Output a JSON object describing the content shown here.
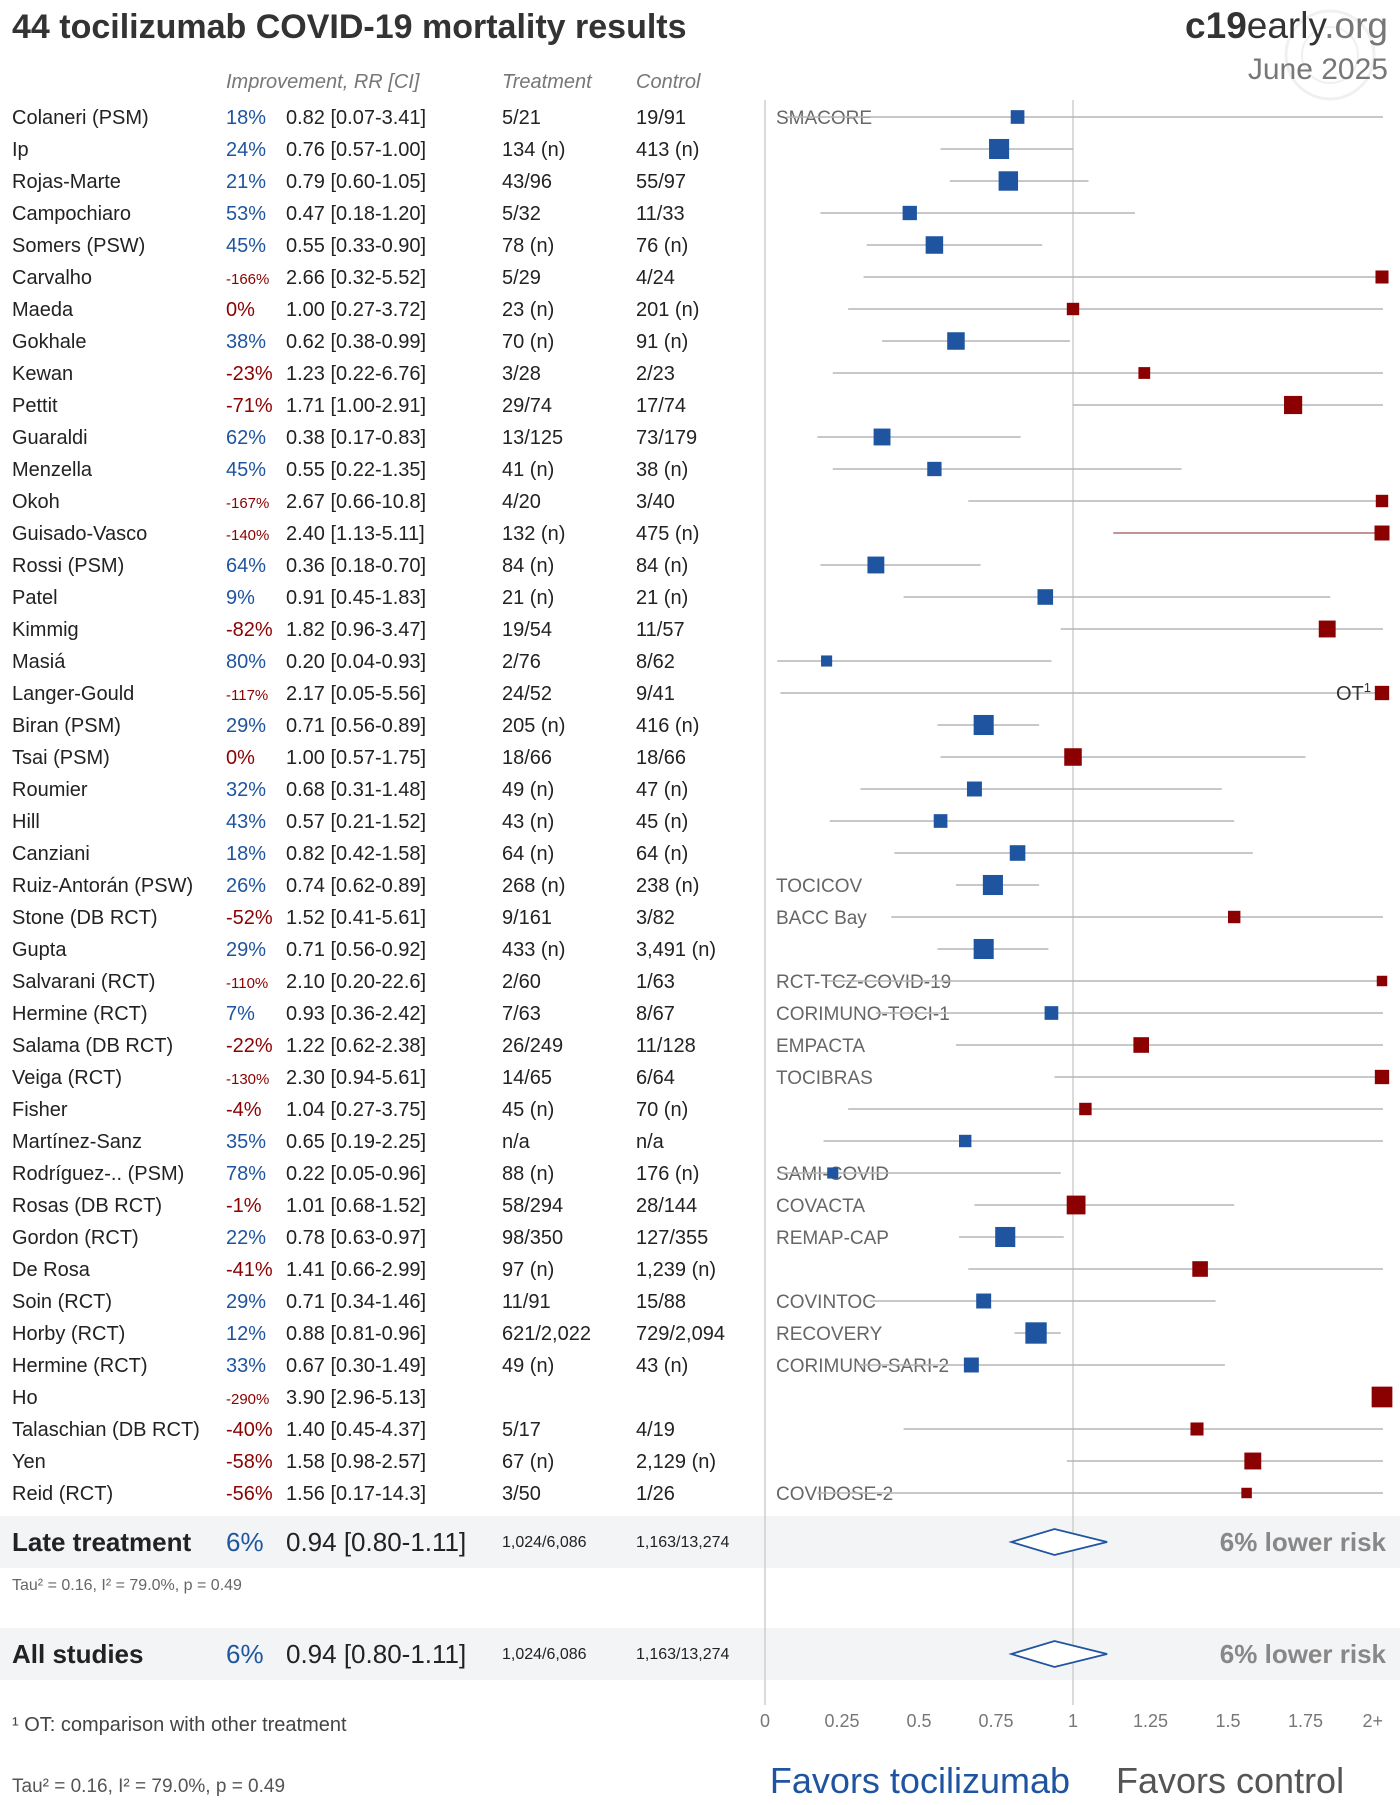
{
  "title": "44 tocilizumab COVID-19 mortality results",
  "brand": {
    "bold": "c19",
    "normal": "early",
    "light": ".org"
  },
  "date": "June 2025",
  "headers": {
    "improvement": "Improvement, RR [CI]",
    "treatment": "Treatment",
    "control": "Control"
  },
  "colors": {
    "benefit": "#1f55a0",
    "harm": "#8b0000",
    "ci_line": "#b5b5b5",
    "summary_bg": "#f3f4f6",
    "neutral_text": "#000000",
    "muted": "#888888"
  },
  "chart_data": {
    "type": "forest",
    "x_ticks": [
      "0",
      "0.25",
      "0.5",
      "0.75",
      "1",
      "1.25",
      "1.5",
      "1.75",
      "2+"
    ],
    "xlim": [
      0,
      2
    ],
    "reference_line": 1,
    "favors_left": "Favors tocilizumab",
    "favors_right": "Favors control",
    "studies": [
      {
        "name": "Colaneri (PSM)",
        "improvement": "18%",
        "rr_ci": "0.82 [0.07-3.41]",
        "rr": 0.82,
        "lo": 0.07,
        "hi": 3.41,
        "treatment": "5/21",
        "control": "19/91",
        "trial": "SMACORE",
        "weight": 1.2,
        "note": ""
      },
      {
        "name": "Ip",
        "improvement": "24%",
        "rr_ci": "0.76 [0.57-1.00]",
        "rr": 0.76,
        "lo": 0.57,
        "hi": 1.0,
        "treatment": "134 (n)",
        "control": "413 (n)",
        "trial": "",
        "weight": 2.2,
        "note": ""
      },
      {
        "name": "Rojas-Marte",
        "improvement": "21%",
        "rr_ci": "0.79 [0.60-1.05]",
        "rr": 0.79,
        "lo": 0.6,
        "hi": 1.05,
        "treatment": "43/96",
        "control": "55/97",
        "trial": "",
        "weight": 2.1,
        "note": ""
      },
      {
        "name": "Campochiaro",
        "improvement": "53%",
        "rr_ci": "0.47 [0.18-1.20]",
        "rr": 0.47,
        "lo": 0.18,
        "hi": 1.2,
        "treatment": "5/32",
        "control": "11/33",
        "trial": "",
        "weight": 1.3,
        "note": ""
      },
      {
        "name": "Somers (PSW)",
        "improvement": "45%",
        "rr_ci": "0.55 [0.33-0.90]",
        "rr": 0.55,
        "lo": 0.33,
        "hi": 0.9,
        "treatment": "78 (n)",
        "control": "76 (n)",
        "trial": "",
        "weight": 1.8,
        "note": ""
      },
      {
        "name": "Carvalho",
        "improvement": "-166%",
        "rr_ci": "2.66 [0.32-5.52]",
        "rr": 2.66,
        "lo": 0.32,
        "hi": 5.52,
        "treatment": "5/29",
        "control": "4/24",
        "trial": "",
        "weight": 1.1,
        "note": ""
      },
      {
        "name": "Maeda",
        "improvement": "0%",
        "rr_ci": "1.00 [0.27-3.72]",
        "rr": 1.0,
        "lo": 0.27,
        "hi": 3.72,
        "treatment": "23 (n)",
        "control": "201 (n)",
        "trial": "",
        "weight": 1.0,
        "note": ""
      },
      {
        "name": "Gokhale",
        "improvement": "38%",
        "rr_ci": "0.62 [0.38-0.99]",
        "rr": 0.62,
        "lo": 0.38,
        "hi": 0.99,
        "treatment": "70 (n)",
        "control": "91 (n)",
        "trial": "",
        "weight": 1.8,
        "note": ""
      },
      {
        "name": "Kewan",
        "improvement": "-23%",
        "rr_ci": "1.23 [0.22-6.76]",
        "rr": 1.23,
        "lo": 0.22,
        "hi": 6.76,
        "treatment": "3/28",
        "control": "2/23",
        "trial": "",
        "weight": 0.9,
        "note": ""
      },
      {
        "name": "Pettit",
        "improvement": "-71%",
        "rr_ci": "1.71 [1.00-2.91]",
        "rr": 1.71,
        "lo": 1.0,
        "hi": 2.91,
        "treatment": "29/74",
        "control": "17/74",
        "trial": "",
        "weight": 1.9,
        "note": ""
      },
      {
        "name": "Guaraldi",
        "improvement": "62%",
        "rr_ci": "0.38 [0.17-0.83]",
        "rr": 0.38,
        "lo": 0.17,
        "hi": 0.83,
        "treatment": "13/125",
        "control": "73/179",
        "trial": "",
        "weight": 1.7,
        "note": ""
      },
      {
        "name": "Menzella",
        "improvement": "45%",
        "rr_ci": "0.55 [0.22-1.35]",
        "rr": 0.55,
        "lo": 0.22,
        "hi": 1.35,
        "treatment": "41 (n)",
        "control": "38 (n)",
        "trial": "",
        "weight": 1.3,
        "note": ""
      },
      {
        "name": "Okoh",
        "improvement": "-167%",
        "rr_ci": "2.67 [0.66-10.8]",
        "rr": 2.67,
        "lo": 0.66,
        "hi": 10.8,
        "treatment": "4/20",
        "control": "3/40",
        "trial": "",
        "weight": 1.0,
        "note": ""
      },
      {
        "name": "Guisado-Vasco",
        "improvement": "-140%",
        "rr_ci": "2.40 [1.13-5.11]",
        "rr": 2.4,
        "lo": 1.13,
        "hi": 5.11,
        "treatment": "132 (n)",
        "control": "475 (n)",
        "trial": "",
        "weight": 1.4,
        "note": ""
      },
      {
        "name": "Rossi (PSM)",
        "improvement": "64%",
        "rr_ci": "0.36 [0.18-0.70]",
        "rr": 0.36,
        "lo": 0.18,
        "hi": 0.7,
        "treatment": "84 (n)",
        "control": "84 (n)",
        "trial": "",
        "weight": 1.7,
        "note": ""
      },
      {
        "name": "Patel",
        "improvement": "9%",
        "rr_ci": "0.91 [0.45-1.83]",
        "rr": 0.91,
        "lo": 0.45,
        "hi": 1.83,
        "treatment": "21 (n)",
        "control": "21 (n)",
        "trial": "",
        "weight": 1.5,
        "note": ""
      },
      {
        "name": "Kimmig",
        "improvement": "-82%",
        "rr_ci": "1.82 [0.96-3.47]",
        "rr": 1.82,
        "lo": 0.96,
        "hi": 3.47,
        "treatment": "19/54",
        "control": "11/57",
        "trial": "",
        "weight": 1.7,
        "note": ""
      },
      {
        "name": "Masiá",
        "improvement": "80%",
        "rr_ci": "0.20 [0.04-0.93]",
        "rr": 0.2,
        "lo": 0.04,
        "hi": 0.93,
        "treatment": "2/76",
        "control": "8/62",
        "trial": "",
        "weight": 0.8,
        "note": ""
      },
      {
        "name": "Langer-Gould",
        "improvement": "-117%",
        "rr_ci": "2.17 [0.05-5.56]",
        "rr": 2.17,
        "lo": 0.05,
        "hi": 5.56,
        "treatment": "24/52",
        "control": "9/41",
        "trial": "",
        "weight": 1.3,
        "note": "OT1"
      },
      {
        "name": "Biran (PSM)",
        "improvement": "29%",
        "rr_ci": "0.71 [0.56-0.89]",
        "rr": 0.71,
        "lo": 0.56,
        "hi": 0.89,
        "treatment": "205 (n)",
        "control": "416 (n)",
        "trial": "",
        "weight": 2.2,
        "note": ""
      },
      {
        "name": "Tsai (PSM)",
        "improvement": "0%",
        "rr_ci": "1.00 [0.57-1.75]",
        "rr": 1.0,
        "lo": 0.57,
        "hi": 1.75,
        "treatment": "18/66",
        "control": "18/66",
        "trial": "",
        "weight": 1.8,
        "note": ""
      },
      {
        "name": "Roumier",
        "improvement": "32%",
        "rr_ci": "0.68 [0.31-1.48]",
        "rr": 0.68,
        "lo": 0.31,
        "hi": 1.48,
        "treatment": "49 (n)",
        "control": "47 (n)",
        "trial": "",
        "weight": 1.4,
        "note": ""
      },
      {
        "name": "Hill",
        "improvement": "43%",
        "rr_ci": "0.57 [0.21-1.52]",
        "rr": 0.57,
        "lo": 0.21,
        "hi": 1.52,
        "treatment": "43 (n)",
        "control": "45 (n)",
        "trial": "",
        "weight": 1.2,
        "note": ""
      },
      {
        "name": "Canziani",
        "improvement": "18%",
        "rr_ci": "0.82 [0.42-1.58]",
        "rr": 0.82,
        "lo": 0.42,
        "hi": 1.58,
        "treatment": "64 (n)",
        "control": "64 (n)",
        "trial": "",
        "weight": 1.5,
        "note": ""
      },
      {
        "name": "Ruiz-Antorán (PSW)",
        "improvement": "26%",
        "rr_ci": "0.74 [0.62-0.89]",
        "rr": 0.74,
        "lo": 0.62,
        "hi": 0.89,
        "treatment": "268 (n)",
        "control": "238 (n)",
        "trial": "TOCICOV",
        "weight": 2.2,
        "note": ""
      },
      {
        "name": "Stone (DB RCT)",
        "improvement": "-52%",
        "rr_ci": "1.52 [0.41-5.61]",
        "rr": 1.52,
        "lo": 0.41,
        "hi": 5.61,
        "treatment": "9/161",
        "control": "3/82",
        "trial": "BACC Bay",
        "weight": 1.0,
        "note": ""
      },
      {
        "name": "Gupta",
        "improvement": "29%",
        "rr_ci": "0.71 [0.56-0.92]",
        "rr": 0.71,
        "lo": 0.56,
        "hi": 0.92,
        "treatment": "433 (n)",
        "control": "3,491 (n)",
        "trial": "",
        "weight": 2.2,
        "note": ""
      },
      {
        "name": "Salvarani (RCT)",
        "improvement": "-110%",
        "rr_ci": "2.10 [0.20-22.6]",
        "rr": 2.1,
        "lo": 0.2,
        "hi": 22.6,
        "treatment": "2/60",
        "control": "1/63",
        "trial": "RCT-TCZ-COVID-19",
        "weight": 0.7,
        "note": ""
      },
      {
        "name": "Hermine (RCT)",
        "improvement": "7%",
        "rr_ci": "0.93 [0.36-2.42]",
        "rr": 0.93,
        "lo": 0.36,
        "hi": 2.42,
        "treatment": "7/63",
        "control": "8/67",
        "trial": "CORIMUNO-TOCI-1",
        "weight": 1.2,
        "note": ""
      },
      {
        "name": "Salama (DB RCT)",
        "improvement": "-22%",
        "rr_ci": "1.22 [0.62-2.38]",
        "rr": 1.22,
        "lo": 0.62,
        "hi": 2.38,
        "treatment": "26/249",
        "control": "11/128",
        "trial": "EMPACTA",
        "weight": 1.5,
        "note": ""
      },
      {
        "name": "Veiga (RCT)",
        "improvement": "-130%",
        "rr_ci": "2.30 [0.94-5.61]",
        "rr": 2.3,
        "lo": 0.94,
        "hi": 5.61,
        "treatment": "14/65",
        "control": "6/64",
        "trial": "TOCIBRAS",
        "weight": 1.3,
        "note": ""
      },
      {
        "name": "Fisher",
        "improvement": "-4%",
        "rr_ci": "1.04 [0.27-3.75]",
        "rr": 1.04,
        "lo": 0.27,
        "hi": 3.75,
        "treatment": "45 (n)",
        "control": "70 (n)",
        "trial": "",
        "weight": 1.0,
        "note": ""
      },
      {
        "name": "Martínez-Sanz",
        "improvement": "35%",
        "rr_ci": "0.65 [0.19-2.25]",
        "rr": 0.65,
        "lo": 0.19,
        "hi": 2.25,
        "treatment": "n/a",
        "control": "n/a",
        "trial": "",
        "weight": 1.0,
        "note": ""
      },
      {
        "name": "Rodríguez-.. (PSM)",
        "improvement": "78%",
        "rr_ci": "0.22 [0.05-0.96]",
        "rr": 0.22,
        "lo": 0.05,
        "hi": 0.96,
        "treatment": "88 (n)",
        "control": "176 (n)",
        "trial": "SAMI-COVID",
        "weight": 0.8,
        "note": ""
      },
      {
        "name": "Rosas (DB RCT)",
        "improvement": "-1%",
        "rr_ci": "1.01 [0.68-1.52]",
        "rr": 1.01,
        "lo": 0.68,
        "hi": 1.52,
        "treatment": "58/294",
        "control": "28/144",
        "trial": "COVACTA",
        "weight": 2.0,
        "note": ""
      },
      {
        "name": "Gordon (RCT)",
        "improvement": "22%",
        "rr_ci": "0.78 [0.63-0.97]",
        "rr": 0.78,
        "lo": 0.63,
        "hi": 0.97,
        "treatment": "98/350",
        "control": "127/355",
        "trial": "REMAP-CAP",
        "weight": 2.2,
        "note": ""
      },
      {
        "name": "De Rosa",
        "improvement": "-41%",
        "rr_ci": "1.41 [0.66-2.99]",
        "rr": 1.41,
        "lo": 0.66,
        "hi": 2.99,
        "treatment": "97 (n)",
        "control": "1,239 (n)",
        "trial": "",
        "weight": 1.5,
        "note": ""
      },
      {
        "name": "Soin (RCT)",
        "improvement": "29%",
        "rr_ci": "0.71 [0.34-1.46]",
        "rr": 0.71,
        "lo": 0.34,
        "hi": 1.46,
        "treatment": "11/91",
        "control": "15/88",
        "trial": "COVINTOC",
        "weight": 1.4,
        "note": ""
      },
      {
        "name": "Horby (RCT)",
        "improvement": "12%",
        "rr_ci": "0.88 [0.81-0.96]",
        "rr": 0.88,
        "lo": 0.81,
        "hi": 0.96,
        "treatment": "621/2,022",
        "control": "729/2,094",
        "trial": "RECOVERY",
        "weight": 2.4,
        "note": ""
      },
      {
        "name": "Hermine (RCT)",
        "improvement": "33%",
        "rr_ci": "0.67 [0.30-1.49]",
        "rr": 0.67,
        "lo": 0.3,
        "hi": 1.49,
        "treatment": "49 (n)",
        "control": "43 (n)",
        "trial": "CORIMUNO-SARI-2",
        "weight": 1.4,
        "note": ""
      },
      {
        "name": "Ho",
        "improvement": "-290%",
        "rr_ci": "3.90 [2.96-5.13]",
        "rr": 3.9,
        "lo": 2.96,
        "hi": 5.13,
        "treatment": "",
        "control": "",
        "trial": "",
        "weight": 2.3,
        "note": ""
      },
      {
        "name": "Talaschian (DB RCT)",
        "improvement": "-40%",
        "rr_ci": "1.40 [0.45-4.37]",
        "rr": 1.4,
        "lo": 0.45,
        "hi": 4.37,
        "treatment": "5/17",
        "control": "4/19",
        "trial": "",
        "weight": 1.1,
        "note": ""
      },
      {
        "name": "Yen",
        "improvement": "-58%",
        "rr_ci": "1.58 [0.98-2.57]",
        "rr": 1.58,
        "lo": 0.98,
        "hi": 2.57,
        "treatment": "67 (n)",
        "control": "2,129 (n)",
        "trial": "",
        "weight": 1.7,
        "note": ""
      },
      {
        "name": "Reid (RCT)",
        "improvement": "-56%",
        "rr_ci": "1.56 [0.17-14.3]",
        "rr": 1.56,
        "lo": 0.17,
        "hi": 14.3,
        "treatment": "3/50",
        "control": "1/26",
        "trial": "COVIDOSE-2",
        "weight": 0.7,
        "note": ""
      }
    ],
    "summaries": [
      {
        "label": "Late treatment",
        "improvement": "6%",
        "rr_ci": "0.94 [0.80-1.11]",
        "rr": 0.94,
        "lo": 0.8,
        "hi": 1.11,
        "treatment": "1,024/6,086",
        "control": "1,163/13,274",
        "risk_text": "6% lower risk",
        "stats": "Tau² = 0.16, I² = 79.0%, p = 0.49"
      },
      {
        "label": "All studies",
        "improvement": "6%",
        "rr_ci": "0.94 [0.80-1.11]",
        "rr": 0.94,
        "lo": 0.8,
        "hi": 1.11,
        "treatment": "1,024/6,086",
        "control": "1,163/13,274",
        "risk_text": "6% lower risk",
        "stats": ""
      }
    ]
  },
  "footnote": "¹ OT: comparison with other treatment",
  "bottom_stats": "Tau² = 0.16, I² = 79.0%, p = 0.49"
}
